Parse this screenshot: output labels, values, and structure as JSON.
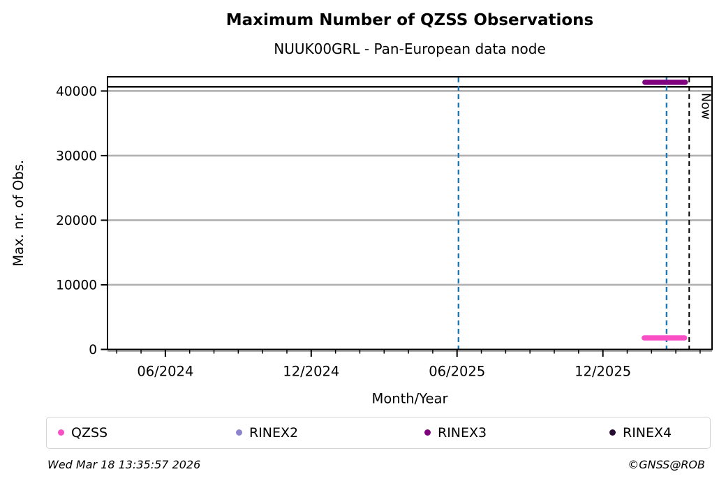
{
  "chart_data": {
    "type": "line",
    "title": "Maximum Number of QZSS Observations",
    "subtitle": "NUUK00GRL - Pan-European data node",
    "xlabel": "Month/Year",
    "ylabel": "Max. nr. of Obs.",
    "x_unit_note": "x values are months since 2024-01-01, e.g. 5 = 06/2024",
    "xlim": [
      2.62,
      27.49
    ],
    "ylim": [
      0,
      42200
    ],
    "grid": "horizontal-only",
    "grid_color": "#b0b0b0",
    "yticks": [
      {
        "value": 0,
        "label": "0"
      },
      {
        "value": 10000,
        "label": "10000"
      },
      {
        "value": 20000,
        "label": "20000"
      },
      {
        "value": 30000,
        "label": "30000"
      },
      {
        "value": 40000,
        "label": "40000"
      }
    ],
    "xticks_major": [
      {
        "value": 5,
        "label": "06/2024"
      },
      {
        "value": 11,
        "label": "12/2024"
      },
      {
        "value": 17,
        "label": "06/2025"
      },
      {
        "value": 23,
        "label": "12/2025"
      }
    ],
    "xticks_minor": [
      3,
      4,
      5,
      6,
      7,
      8,
      9,
      10,
      11,
      12,
      13,
      14,
      15,
      16,
      17,
      18,
      19,
      20,
      21,
      22,
      23,
      24,
      25,
      26,
      27
    ],
    "reference_hlines": [
      {
        "name": "max-observations-line",
        "value": 40660,
        "color": "#000000",
        "style": "solid",
        "width": 2.4
      }
    ],
    "reference_vlines": [
      {
        "name": "june-2025-marker",
        "value": 17.06,
        "color": "#1f77b4",
        "style": "dashed",
        "label": ""
      },
      {
        "name": "latest-data-marker",
        "value": 25.62,
        "color": "#1f77b4",
        "style": "dashed",
        "label": ""
      },
      {
        "name": "now-marker",
        "value": 26.55,
        "color": "#000000",
        "style": "dashed",
        "label": "Now"
      }
    ],
    "series": [
      {
        "name": "QZSS",
        "color": "#fa50c5",
        "segments": [
          {
            "x_start": 24.7,
            "x_end": 26.36,
            "y": 1780
          }
        ]
      },
      {
        "name": "RINEX2",
        "color": "#8d85cc",
        "segments": []
      },
      {
        "name": "RINEX3",
        "color": "#800080",
        "segments": [
          {
            "x_start": 24.73,
            "x_end": 26.39,
            "y": 41350
          }
        ]
      },
      {
        "name": "RINEX4",
        "color": "#280b33",
        "segments": []
      }
    ],
    "legend_position": "bottom"
  },
  "footer": {
    "timestamp": "Wed Mar 18 13:35:57 2026",
    "credit": "©GNSS@ROB"
  }
}
